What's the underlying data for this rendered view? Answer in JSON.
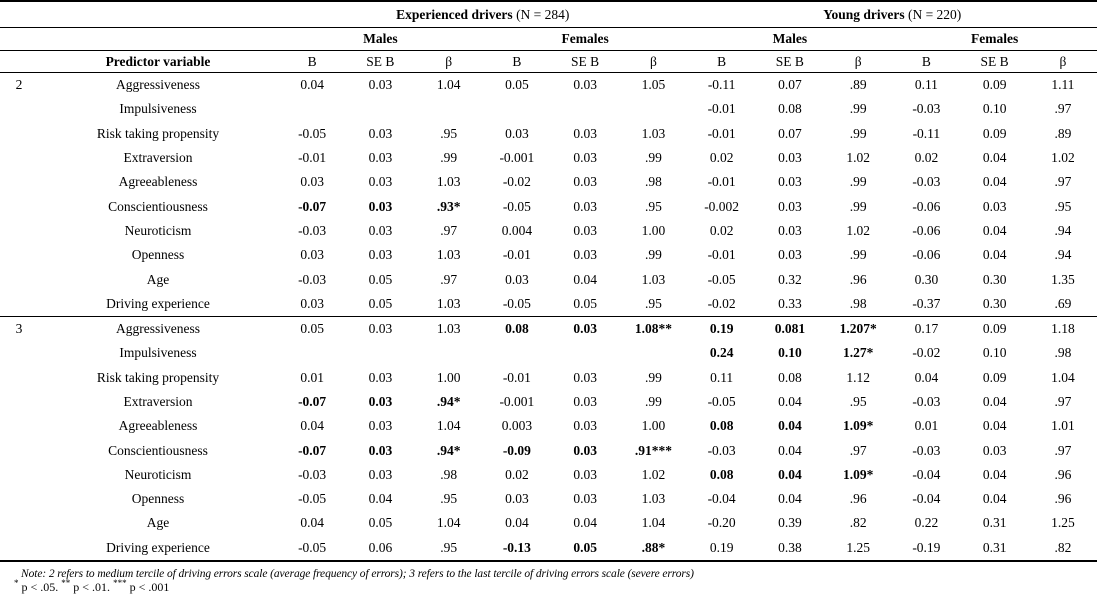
{
  "table": {
    "groups": [
      {
        "name": "Experienced drivers",
        "n": "(N = 284)"
      },
      {
        "name": "Young drivers",
        "n": "(N = 220)"
      }
    ],
    "subgroups": [
      "Males",
      "Females",
      "Males",
      "Females"
    ],
    "predictor_header": "Predictor variable",
    "stat_headers": [
      "B",
      "SE B",
      "β"
    ],
    "sections": [
      {
        "tercile": "2",
        "rows": [
          {
            "predictor": "Aggressiveness",
            "values": [
              "0.04",
              "0.03",
              "1.04",
              "0.05",
              "0.03",
              "1.05",
              "-0.11",
              "0.07",
              ".89",
              "0.11",
              "0.09",
              "1.11"
            ],
            "bold": [
              0,
              0,
              0,
              0,
              0,
              0,
              0,
              0,
              0,
              0,
              0,
              0
            ]
          },
          {
            "predictor": "Impulsiveness",
            "values": [
              "",
              "",
              "",
              "",
              "",
              "",
              "-0.01",
              "0.08",
              ".99",
              "-0.03",
              "0.10",
              ".97"
            ],
            "bold": [
              0,
              0,
              0,
              0,
              0,
              0,
              0,
              0,
              0,
              0,
              0,
              0
            ]
          },
          {
            "predictor": "Risk taking propensity",
            "values": [
              "-0.05",
              "0.03",
              ".95",
              "0.03",
              "0.03",
              "1.03",
              "-0.01",
              "0.07",
              ".99",
              "-0.11",
              "0.09",
              ".89"
            ],
            "bold": [
              0,
              0,
              0,
              0,
              0,
              0,
              0,
              0,
              0,
              0,
              0,
              0
            ]
          },
          {
            "predictor": "Extraversion",
            "values": [
              "-0.01",
              "0.03",
              ".99",
              "-0.001",
              "0.03",
              ".99",
              "0.02",
              "0.03",
              "1.02",
              "0.02",
              "0.04",
              "1.02"
            ],
            "bold": [
              0,
              0,
              0,
              0,
              0,
              0,
              0,
              0,
              0,
              0,
              0,
              0
            ]
          },
          {
            "predictor": "Agreeableness",
            "values": [
              "0.03",
              "0.03",
              "1.03",
              "-0.02",
              "0.03",
              ".98",
              "-0.01",
              "0.03",
              ".99",
              "-0.03",
              "0.04",
              ".97"
            ],
            "bold": [
              0,
              0,
              0,
              0,
              0,
              0,
              0,
              0,
              0,
              0,
              0,
              0
            ]
          },
          {
            "predictor": "Conscientiousness",
            "values": [
              "-0.07",
              "0.03",
              ".93*",
              "-0.05",
              "0.03",
              ".95",
              "-0.002",
              "0.03",
              ".99",
              "-0.06",
              "0.03",
              ".95"
            ],
            "bold": [
              1,
              1,
              1,
              0,
              0,
              0,
              0,
              0,
              0,
              0,
              0,
              0
            ]
          },
          {
            "predictor": "Neuroticism",
            "values": [
              "-0.03",
              "0.03",
              ".97",
              "0.004",
              "0.03",
              "1.00",
              "0.02",
              "0.03",
              "1.02",
              "-0.06",
              "0.04",
              ".94"
            ],
            "bold": [
              0,
              0,
              0,
              0,
              0,
              0,
              0,
              0,
              0,
              0,
              0,
              0
            ]
          },
          {
            "predictor": "Openness",
            "values": [
              "0.03",
              "0.03",
              "1.03",
              "-0.01",
              "0.03",
              ".99",
              "-0.01",
              "0.03",
              ".99",
              "-0.06",
              "0.04",
              ".94"
            ],
            "bold": [
              0,
              0,
              0,
              0,
              0,
              0,
              0,
              0,
              0,
              0,
              0,
              0
            ]
          },
          {
            "predictor": "Age",
            "values": [
              "-0.03",
              "0.05",
              ".97",
              "0.03",
              "0.04",
              "1.03",
              "-0.05",
              "0.32",
              ".96",
              "0.30",
              "0.30",
              "1.35"
            ],
            "bold": [
              0,
              0,
              0,
              0,
              0,
              0,
              0,
              0,
              0,
              0,
              0,
              0
            ]
          },
          {
            "predictor": "Driving experience",
            "values": [
              "0.03",
              "0.05",
              "1.03",
              "-0.05",
              "0.05",
              ".95",
              "-0.02",
              "0.33",
              ".98",
              "-0.37",
              "0.30",
              ".69"
            ],
            "bold": [
              0,
              0,
              0,
              0,
              0,
              0,
              0,
              0,
              0,
              0,
              0,
              0
            ]
          }
        ]
      },
      {
        "tercile": "3",
        "rows": [
          {
            "predictor": "Aggressiveness",
            "values": [
              "0.05",
              "0.03",
              "1.03",
              "0.08",
              "0.03",
              "1.08**",
              "0.19",
              "0.081",
              "1.207*",
              "0.17",
              "0.09",
              "1.18"
            ],
            "bold": [
              0,
              0,
              0,
              1,
              1,
              1,
              1,
              1,
              1,
              0,
              0,
              0
            ]
          },
          {
            "predictor": "Impulsiveness",
            "values": [
              "",
              "",
              "",
              "",
              "",
              "",
              "0.24",
              "0.10",
              "1.27*",
              "-0.02",
              "0.10",
              ".98"
            ],
            "bold": [
              0,
              0,
              0,
              0,
              0,
              0,
              1,
              1,
              1,
              0,
              0,
              0
            ]
          },
          {
            "predictor": "Risk taking propensity",
            "values": [
              "0.01",
              "0.03",
              "1.00",
              "-0.01",
              "0.03",
              ".99",
              "0.11",
              "0.08",
              "1.12",
              "0.04",
              "0.09",
              "1.04"
            ],
            "bold": [
              0,
              0,
              0,
              0,
              0,
              0,
              0,
              0,
              0,
              0,
              0,
              0
            ]
          },
          {
            "predictor": "Extraversion",
            "values": [
              "-0.07",
              "0.03",
              ".94*",
              "-0.001",
              "0.03",
              ".99",
              "-0.05",
              "0.04",
              ".95",
              "-0.03",
              "0.04",
              ".97"
            ],
            "bold": [
              1,
              1,
              1,
              0,
              0,
              0,
              0,
              0,
              0,
              0,
              0,
              0
            ]
          },
          {
            "predictor": "Agreeableness",
            "values": [
              "0.04",
              "0.03",
              "1.04",
              "0.003",
              "0.03",
              "1.00",
              "0.08",
              "0.04",
              "1.09*",
              "0.01",
              "0.04",
              "1.01"
            ],
            "bold": [
              0,
              0,
              0,
              0,
              0,
              0,
              1,
              1,
              1,
              0,
              0,
              0
            ]
          },
          {
            "predictor": "Conscientiousness",
            "values": [
              "-0.07",
              "0.03",
              ".94*",
              "-0.09",
              "0.03",
              ".91***",
              "-0.03",
              "0.04",
              ".97",
              "-0.03",
              "0.03",
              ".97"
            ],
            "bold": [
              1,
              1,
              1,
              1,
              1,
              1,
              0,
              0,
              0,
              0,
              0,
              0
            ]
          },
          {
            "predictor": "Neuroticism",
            "values": [
              "-0.03",
              "0.03",
              ".98",
              "0.02",
              "0.03",
              "1.02",
              "0.08",
              "0.04",
              "1.09*",
              "-0.04",
              "0.04",
              ".96"
            ],
            "bold": [
              0,
              0,
              0,
              0,
              0,
              0,
              1,
              1,
              1,
              0,
              0,
              0
            ]
          },
          {
            "predictor": "Openness",
            "values": [
              "-0.05",
              "0.04",
              ".95",
              "0.03",
              "0.03",
              "1.03",
              "-0.04",
              "0.04",
              ".96",
              "-0.04",
              "0.04",
              ".96"
            ],
            "bold": [
              0,
              0,
              0,
              0,
              0,
              0,
              0,
              0,
              0,
              0,
              0,
              0
            ]
          },
          {
            "predictor": "Age",
            "values": [
              "0.04",
              "0.05",
              "1.04",
              "0.04",
              "0.04",
              "1.04",
              "-0.20",
              "0.39",
              ".82",
              "0.22",
              "0.31",
              "1.25"
            ],
            "bold": [
              0,
              0,
              0,
              0,
              0,
              0,
              0,
              0,
              0,
              0,
              0,
              0
            ]
          },
          {
            "predictor": "Driving experience",
            "values": [
              "-0.05",
              "0.06",
              ".95",
              "-0.13",
              "0.05",
              ".88*",
              "0.19",
              "0.38",
              "1.25",
              "-0.19",
              "0.31",
              ".82"
            ],
            "bold": [
              0,
              0,
              0,
              1,
              1,
              1,
              0,
              0,
              0,
              0,
              0,
              0
            ]
          }
        ]
      }
    ]
  },
  "notes": {
    "line1": "Note: 2 refers to medium tercile of driving errors scale (average frequency of errors); 3 refers to the last tercile of driving errors scale (severe errors)",
    "sig": [
      {
        "stars": "*",
        "text": "p < .05."
      },
      {
        "stars": "**",
        "text": "p < .01."
      },
      {
        "stars": "***",
        "text": "p < .001"
      }
    ]
  },
  "colors": {
    "text": "#000000",
    "background": "#ffffff",
    "rule": "#000000"
  }
}
